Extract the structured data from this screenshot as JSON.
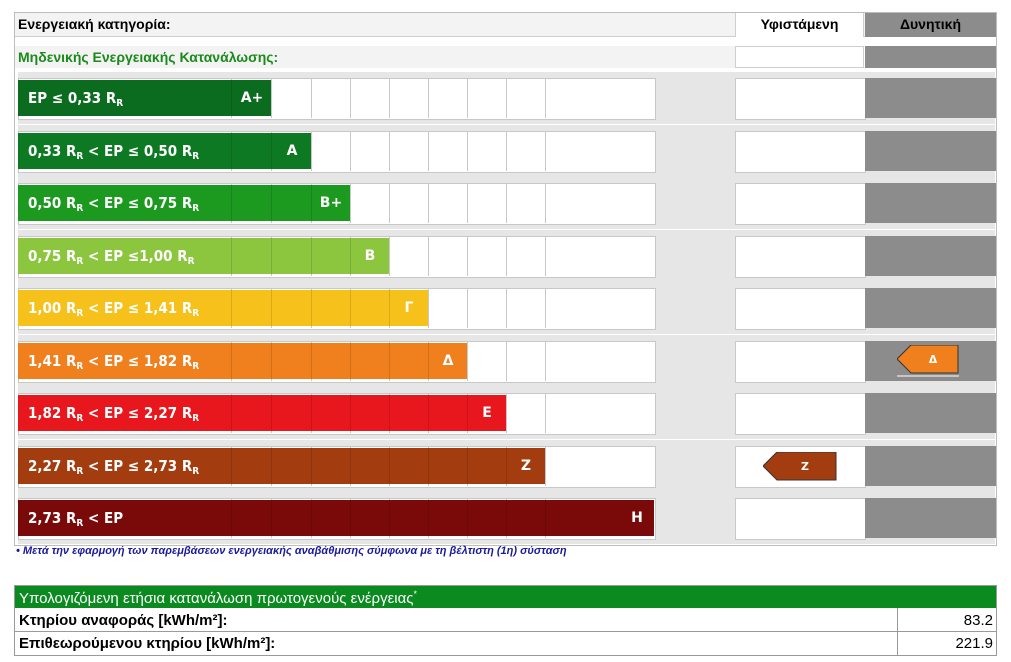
{
  "header": {
    "category_label": "Ενεργειακή κατηγορία:",
    "existing_label": "Υφιστάμενη",
    "potential_label": "Δυνητική"
  },
  "zero_energy_label": "Μηδενικής Ενεργειακής Κατανάλωσης:",
  "rows": [
    {
      "range": "EP ≤ 0,33 R_R",
      "parts": [
        "EP ≤ 0,33 R",
        "R",
        ""
      ],
      "letter": "A+",
      "color": "#0b6b1f"
    },
    {
      "range": "0,33 R_R < EP ≤ 0,50 R_R",
      "parts": [
        "0,33 R",
        "R",
        " < EP ≤ 0,50 R",
        "R"
      ],
      "letter": "A",
      "color": "#0d7a23"
    },
    {
      "range": "0,50 R_R < EP ≤ 0,75 R_R",
      "parts": [
        "0,50 R",
        "R",
        " < EP ≤ 0,75 R",
        "R"
      ],
      "letter": "B+",
      "color": "#1c9a1f"
    },
    {
      "range": "0,75 R_R < EP ≤1,00 R_R",
      "parts": [
        "0,75 R",
        "R",
        " < EP ≤1,00 R",
        "R"
      ],
      "letter": "B",
      "color": "#8cc63f"
    },
    {
      "range": "1,00 R_R < EP ≤ 1,41 R_R",
      "parts": [
        "1,00 R",
        "R",
        " < EP ≤ 1,41 R",
        "R"
      ],
      "letter": "Γ",
      "color": "#f7c11b"
    },
    {
      "range": "1,41 R_R < EP ≤ 1,82 R_R",
      "parts": [
        "1,41 R",
        "R",
        " < EP ≤ 1,82 R",
        "R"
      ],
      "letter": "Δ",
      "color": "#f07f1d"
    },
    {
      "range": "1,82 R_R < EP ≤ 2,27 R_R",
      "parts": [
        "1,82 R",
        "R",
        " < EP ≤ 2,27 R",
        "R"
      ],
      "letter": "E",
      "color": "#e8161d"
    },
    {
      "range": "2,27 R_R < EP ≤ 2,73 R_R",
      "parts": [
        "2,27 R",
        "R",
        " <  EP ≤  2,73 R",
        "R"
      ],
      "letter": "Z",
      "color": "#a33c0f"
    },
    {
      "range": "2,73 R_R < EP",
      "parts": [
        "2,73 R",
        "R",
        " < EP",
        ""
      ],
      "letter": "H",
      "color": "#7a0a0a"
    }
  ],
  "existing_class": {
    "letter": "Z",
    "color": "#a33c0f"
  },
  "potential_class": {
    "letter": "Δ",
    "color": "#f07f1d"
  },
  "footnote": "• Μετά την εφαρμογή των παρεμβάσεων ενεργειακής αναβάθμισης σύμφωνα με τη βέλτιστη (1η) σύσταση",
  "summary": {
    "title": "Υπολογιζόμενη ετήσια κατανάλωση πρωτογενούς ενέργειας",
    "title_mark": "*",
    "reference_label": "Κτηρίου αναφοράς [kWh/m²]:",
    "reference_value": "83.2",
    "inspected_label": "Επιθεωρούμενου κτηρίου [kWh/m²]:",
    "inspected_value": "221.9"
  },
  "colors": {
    "header_green": "#0a8a1f",
    "grey_column": "#8c8c8c",
    "existing_arrow": "#a33c0f",
    "potential_arrow": "#f07f1d"
  }
}
